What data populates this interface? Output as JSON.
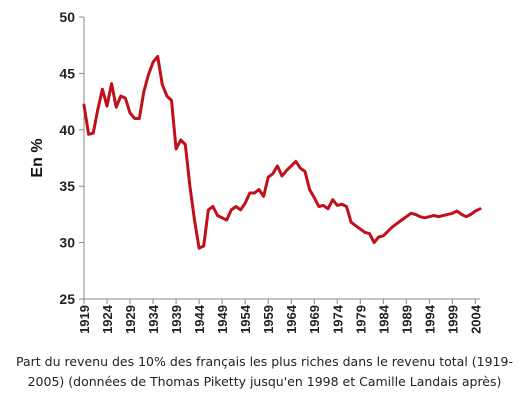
{
  "caption": "Part du revenu des 10% des français les plus riches dans le revenu total (1919-2005) (données de Thomas Piketty jusqu'en 1998 et Camille Landais après)",
  "chart_data": {
    "type": "line",
    "title": "",
    "xlabel": "",
    "ylabel": "En %",
    "ylim": [
      25,
      50
    ],
    "yticks": [
      25,
      30,
      35,
      40,
      45,
      50
    ],
    "xlim": [
      1919,
      2005
    ],
    "xticks": [
      1919,
      1924,
      1929,
      1934,
      1939,
      1944,
      1949,
      1954,
      1959,
      1964,
      1969,
      1974,
      1979,
      1984,
      1989,
      1994,
      1999,
      2004
    ],
    "grid": {
      "horizontal": false,
      "vertical": false
    },
    "legend": "none",
    "line_color": "#c0101a",
    "series": [
      {
        "x": [
          1919,
          1920,
          1921,
          1922,
          1923,
          1924,
          1925,
          1926,
          1927,
          1928,
          1929,
          1930,
          1931,
          1932,
          1933,
          1934,
          1935,
          1936,
          1937,
          1938,
          1939,
          1940,
          1941,
          1942,
          1943,
          1944,
          1945,
          1946,
          1947,
          1948,
          1949,
          1950,
          1951,
          1952,
          1953,
          1954,
          1955,
          1956,
          1957,
          1958,
          1959,
          1960,
          1961,
          1962,
          1963,
          1964,
          1965,
          1966,
          1967,
          1968,
          1969,
          1970,
          1971,
          1972,
          1973,
          1974,
          1975,
          1976,
          1977,
          1978,
          1979,
          1980,
          1981,
          1982,
          1983,
          1984,
          1985,
          1986,
          1987,
          1988,
          1989,
          1990,
          1991,
          1992,
          1993,
          1994,
          1995,
          1996,
          1997,
          1998,
          1999,
          2000,
          2001,
          2002,
          2003,
          2004,
          2005
        ],
        "values": [
          42.2,
          39.6,
          39.7,
          41.8,
          43.6,
          42.1,
          44.1,
          42.0,
          43.0,
          42.8,
          41.5,
          41.0,
          41.0,
          43.4,
          44.9,
          46.0,
          46.5,
          44.0,
          43.0,
          42.6,
          38.3,
          39.1,
          38.7,
          35.0,
          32.0,
          29.5,
          29.7,
          32.9,
          33.2,
          32.4,
          32.2,
          32.0,
          32.9,
          33.2,
          32.9,
          33.5,
          34.4,
          34.4,
          34.7,
          34.1,
          35.8,
          36.1,
          36.8,
          35.9,
          36.4,
          36.8,
          37.2,
          36.6,
          36.3,
          34.7,
          34.0,
          33.2,
          33.3,
          33.0,
          33.8,
          33.3,
          33.4,
          33.2,
          31.8,
          31.5,
          31.2,
          30.9,
          30.8,
          30.0,
          30.5,
          30.6,
          31.0,
          31.4,
          31.7,
          32.0,
          32.3,
          32.6,
          32.5,
          32.3,
          32.2,
          32.3,
          32.4,
          32.3,
          32.4,
          32.5,
          32.6,
          32.8,
          32.5,
          32.3,
          32.5,
          32.8,
          33.0
        ]
      }
    ]
  }
}
